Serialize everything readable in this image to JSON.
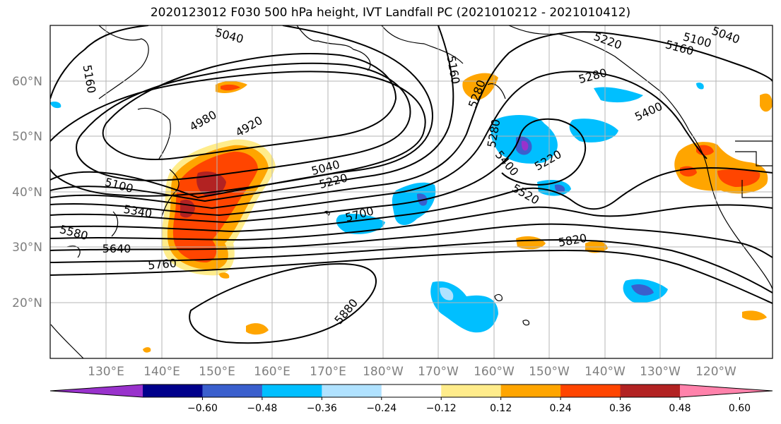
{
  "title": "2020123012 F030 500 hPa height, IVT Landfall PC (2021010212 - 2021010412)",
  "lat_labels": [
    "60°N",
    "50°N",
    "40°N",
    "30°N",
    "20°N"
  ],
  "lon_labels": [
    "130°E",
    "140°E",
    "150°E",
    "160°E",
    "170°E",
    "180°W",
    "170°W",
    "160°W",
    "150°W",
    "140°W",
    "130°W",
    "120°W"
  ],
  "contour_labels": [
    "5040",
    "5160",
    "5220",
    "5160",
    "5100",
    "5040",
    "5160",
    "5280",
    "5280",
    "5400",
    "4980",
    "4920",
    "5040",
    "5220",
    "5280",
    "5400",
    "5220",
    "5100",
    "5340",
    "5580",
    "5640",
    "5760",
    "5700",
    "5520",
    "5820",
    "5880"
  ],
  "colorbar": {
    "ticks": [
      "−0.60",
      "−0.48",
      "−0.36",
      "−0.24",
      "−0.12",
      "0.12",
      "0.24",
      "0.36",
      "0.48",
      "0.60"
    ],
    "colors": [
      "#9932cc",
      "#00008b",
      "#3a5fcd",
      "#00bfff",
      "#b0e2ff",
      "#ffffff",
      "#ffec8b",
      "#ffa500",
      "#ff4500",
      "#b22222",
      "#ff82ab"
    ]
  }
}
